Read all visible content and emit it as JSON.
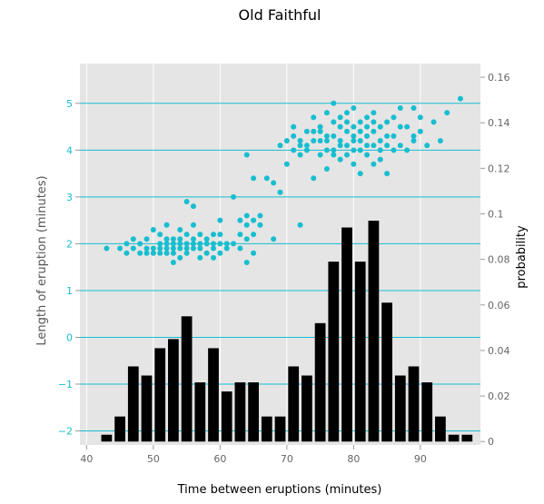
{
  "chart_data": {
    "type": "scatter",
    "title": "Old Faithful",
    "xlabel": "Time between eruptions (minutes)",
    "ylabel": "Length of eruption (minutes)",
    "y2label": "probability",
    "xlim": [
      39,
      99
    ],
    "ylim": [
      -2.3,
      5.85
    ],
    "y2lim": [
      -0.0015,
      0.166
    ],
    "x_ticks": [
      40,
      50,
      60,
      70,
      80,
      90
    ],
    "y_ticks": [
      -2,
      -1,
      0,
      1,
      2,
      3,
      4,
      5
    ],
    "y2_ticks": [
      0,
      0.02,
      0.04,
      0.06,
      0.08,
      0.1,
      0.12,
      0.14,
      0.16
    ],
    "x_tick_labels": [
      "40",
      "50",
      "60",
      "70",
      "80",
      "90"
    ],
    "y_tick_labels": [
      "−2",
      "−1",
      "0",
      "1",
      "2",
      "3",
      "4",
      "5"
    ],
    "y2_tick_labels": [
      "0",
      "0.02",
      "0.04",
      "0.06",
      "0.08",
      "0.1",
      "0.12",
      "0.14",
      "0.16"
    ],
    "grid": true,
    "colors": {
      "points": "#17becf",
      "bars": "#000000",
      "background": "#e5e5e5",
      "gridlines": "#17becf",
      "tick_text_left": "#17becf",
      "tick_text_other": "#666666"
    },
    "series": [
      {
        "type": "scatter",
        "axis": "left",
        "points": [
          [
            43,
            1.9
          ],
          [
            45,
            1.9
          ],
          [
            46,
            2.0
          ],
          [
            46,
            1.8
          ],
          [
            47,
            2.1
          ],
          [
            47,
            1.9
          ],
          [
            48,
            2.0
          ],
          [
            48,
            1.8
          ],
          [
            49,
            2.1
          ],
          [
            49,
            1.9
          ],
          [
            49,
            1.8
          ],
          [
            50,
            2.3
          ],
          [
            50,
            1.9
          ],
          [
            50,
            1.8
          ],
          [
            51,
            2.2
          ],
          [
            51,
            2.0
          ],
          [
            51,
            1.9
          ],
          [
            51,
            1.8
          ],
          [
            52,
            2.1
          ],
          [
            52,
            2.0
          ],
          [
            52,
            1.9
          ],
          [
            52,
            1.8
          ],
          [
            52,
            2.4
          ],
          [
            53,
            2.1
          ],
          [
            53,
            2.0
          ],
          [
            53,
            1.9
          ],
          [
            53,
            1.8
          ],
          [
            53,
            1.6
          ],
          [
            54,
            2.3
          ],
          [
            54,
            2.1
          ],
          [
            54,
            2.0
          ],
          [
            54,
            1.9
          ],
          [
            54,
            1.7
          ],
          [
            55,
            2.2
          ],
          [
            55,
            2.0
          ],
          [
            55,
            1.9
          ],
          [
            55,
            1.8
          ],
          [
            55,
            2.9
          ],
          [
            56,
            2.4
          ],
          [
            56,
            2.1
          ],
          [
            56,
            2.0
          ],
          [
            56,
            1.9
          ],
          [
            56,
            2.8
          ],
          [
            57,
            2.2
          ],
          [
            57,
            2.0
          ],
          [
            57,
            1.9
          ],
          [
            57,
            1.7
          ],
          [
            58,
            2.1
          ],
          [
            58,
            2.0
          ],
          [
            58,
            1.8
          ],
          [
            59,
            2.2
          ],
          [
            59,
            2.0
          ],
          [
            59,
            1.9
          ],
          [
            59,
            1.7
          ],
          [
            60,
            2.2
          ],
          [
            60,
            2.0
          ],
          [
            60,
            1.8
          ],
          [
            60,
            2.5
          ],
          [
            61,
            2.0
          ],
          [
            61,
            1.9
          ],
          [
            62,
            2.0
          ],
          [
            62,
            3.0
          ],
          [
            63,
            2.2
          ],
          [
            63,
            1.9
          ],
          [
            63,
            2.5
          ],
          [
            64,
            2.4
          ],
          [
            64,
            2.1
          ],
          [
            64,
            1.6
          ],
          [
            64,
            2.6
          ],
          [
            65,
            1.8
          ],
          [
            65,
            2.2
          ],
          [
            65,
            2.5
          ],
          [
            66,
            2.6
          ],
          [
            66,
            2.4
          ],
          [
            64,
            3.9
          ],
          [
            65,
            3.4
          ],
          [
            67,
            3.4
          ],
          [
            68,
            2.1
          ],
          [
            68,
            3.3
          ],
          [
            69,
            3.1
          ],
          [
            69,
            4.1
          ],
          [
            70,
            3.7
          ],
          [
            70,
            4.2
          ],
          [
            71,
            4.0
          ],
          [
            71,
            4.3
          ],
          [
            71,
            4.5
          ],
          [
            72,
            4.2
          ],
          [
            72,
            3.9
          ],
          [
            72,
            4.1
          ],
          [
            72,
            2.4
          ],
          [
            73,
            4.4
          ],
          [
            73,
            4.0
          ],
          [
            73,
            4.1
          ],
          [
            74,
            4.2
          ],
          [
            74,
            4.4
          ],
          [
            74,
            4.7
          ],
          [
            74,
            3.4
          ],
          [
            75,
            3.9
          ],
          [
            75,
            4.2
          ],
          [
            75,
            4.4
          ],
          [
            75,
            4.5
          ],
          [
            76,
            4.8
          ],
          [
            76,
            4.0
          ],
          [
            76,
            4.2
          ],
          [
            76,
            4.3
          ],
          [
            76,
            3.6
          ],
          [
            77,
            4.0
          ],
          [
            77,
            4.3
          ],
          [
            77,
            4.6
          ],
          [
            77,
            5.0
          ],
          [
            77,
            3.9
          ],
          [
            78,
            4.5
          ],
          [
            78,
            4.2
          ],
          [
            78,
            4.1
          ],
          [
            78,
            3.8
          ],
          [
            78,
            4.7
          ],
          [
            79,
            4.4
          ],
          [
            79,
            4.6
          ],
          [
            79,
            4.1
          ],
          [
            79,
            3.9
          ],
          [
            79,
            4.8
          ],
          [
            80,
            4.3
          ],
          [
            80,
            4.5
          ],
          [
            80,
            4.2
          ],
          [
            80,
            4.0
          ],
          [
            80,
            3.7
          ],
          [
            80,
            4.9
          ],
          [
            81,
            4.6
          ],
          [
            81,
            4.2
          ],
          [
            81,
            4.0
          ],
          [
            81,
            4.4
          ],
          [
            81,
            3.5
          ],
          [
            82,
            4.7
          ],
          [
            82,
            4.5
          ],
          [
            82,
            4.1
          ],
          [
            82,
            4.3
          ],
          [
            82,
            3.9
          ],
          [
            83,
            4.8
          ],
          [
            83,
            4.4
          ],
          [
            83,
            4.1
          ],
          [
            83,
            4.6
          ],
          [
            83,
            3.7
          ],
          [
            84,
            4.5
          ],
          [
            84,
            4.2
          ],
          [
            84,
            4.0
          ],
          [
            84,
            3.8
          ],
          [
            85,
            4.3
          ],
          [
            85,
            4.6
          ],
          [
            85,
            4.1
          ],
          [
            85,
            3.5
          ],
          [
            86,
            4.7
          ],
          [
            86,
            4.3
          ],
          [
            86,
            4.0
          ],
          [
            87,
            4.9
          ],
          [
            87,
            4.5
          ],
          [
            87,
            4.1
          ],
          [
            88,
            4.5
          ],
          [
            88,
            4.0
          ],
          [
            89,
            4.9
          ],
          [
            89,
            4.3
          ],
          [
            89,
            4.2
          ],
          [
            90,
            4.4
          ],
          [
            90,
            4.7
          ],
          [
            91,
            4.1
          ],
          [
            92,
            4.6
          ],
          [
            93,
            4.2
          ],
          [
            94,
            4.8
          ],
          [
            96,
            5.1
          ]
        ]
      },
      {
        "type": "bar",
        "axis": "right",
        "bin_width": 2,
        "bins": [
          {
            "x": 43,
            "y": 0.003
          },
          {
            "x": 45,
            "y": 0.011
          },
          {
            "x": 47,
            "y": 0.033
          },
          {
            "x": 49,
            "y": 0.029
          },
          {
            "x": 51,
            "y": 0.041
          },
          {
            "x": 53,
            "y": 0.045
          },
          {
            "x": 55,
            "y": 0.055
          },
          {
            "x": 57,
            "y": 0.026
          },
          {
            "x": 59,
            "y": 0.041
          },
          {
            "x": 61,
            "y": 0.022
          },
          {
            "x": 63,
            "y": 0.026
          },
          {
            "x": 65,
            "y": 0.026
          },
          {
            "x": 67,
            "y": 0.011
          },
          {
            "x": 69,
            "y": 0.011
          },
          {
            "x": 71,
            "y": 0.033
          },
          {
            "x": 73,
            "y": 0.029
          },
          {
            "x": 75,
            "y": 0.052
          },
          {
            "x": 77,
            "y": 0.079
          },
          {
            "x": 79,
            "y": 0.094
          },
          {
            "x": 81,
            "y": 0.079
          },
          {
            "x": 83,
            "y": 0.097
          },
          {
            "x": 85,
            "y": 0.061
          },
          {
            "x": 87,
            "y": 0.029
          },
          {
            "x": 89,
            "y": 0.033
          },
          {
            "x": 91,
            "y": 0.026
          },
          {
            "x": 93,
            "y": 0.011
          },
          {
            "x": 95,
            "y": 0.003
          },
          {
            "x": 97,
            "y": 0.003
          }
        ]
      }
    ]
  }
}
